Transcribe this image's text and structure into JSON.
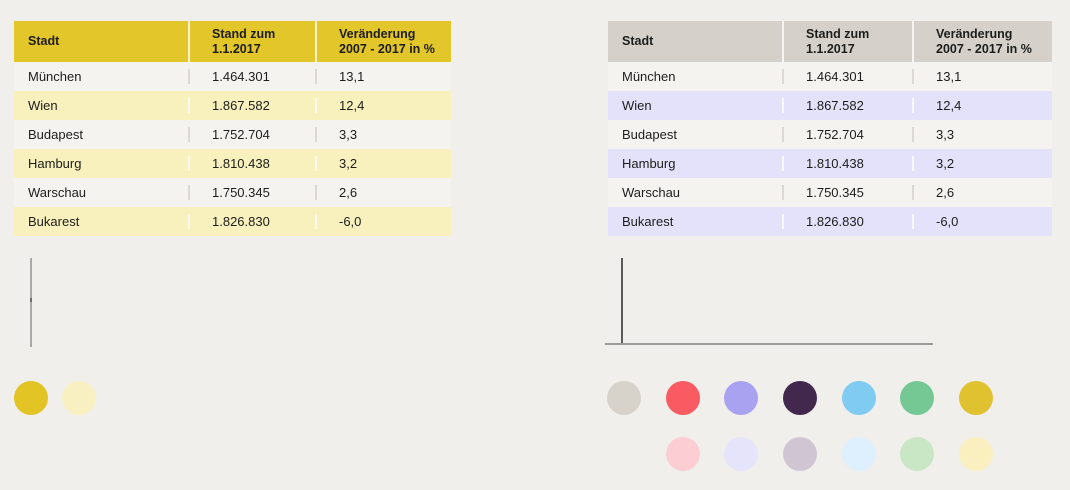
{
  "page": {
    "background": "#f0efeb"
  },
  "left_theme": {
    "header_bg": "#e2c62a",
    "alt_row_bg": "#f8f0bd",
    "row_bg": "#f4f3f0",
    "axis": {
      "y_color": "#a9a9a9",
      "tick_color": "#6e6e6e"
    },
    "table": {
      "headers": {
        "stadt": "Stadt",
        "stand_line1": "Stand zum",
        "stand_line2": "1.1.2017",
        "ver_line1": "Veränderung",
        "ver_line2": "2007 - 2017 in %"
      },
      "rows": [
        {
          "stadt": "München",
          "stand": "1.464.301",
          "ver": "13,1"
        },
        {
          "stadt": "Wien",
          "stand": "1.867.582",
          "ver": "12,4"
        },
        {
          "stadt": "Budapest",
          "stand": "1.752.704",
          "ver": "3,3"
        },
        {
          "stadt": "Hamburg",
          "stand": "1.810.438",
          "ver": "3,2"
        },
        {
          "stadt": "Warschau",
          "stand": "1.750.345",
          "ver": "2,6"
        },
        {
          "stadt": "Bukarest",
          "stand": "1.826.830",
          "ver": "-6,0"
        }
      ]
    },
    "palette": [
      {
        "name": "gold",
        "color": "#e2c424"
      },
      {
        "name": "pale-yellow",
        "color": "#f9f0c1"
      }
    ]
  },
  "right_theme": {
    "header_bg": "#d5d1ca",
    "alt_row_bg": "#e3e2fa",
    "row_bg": "#f4f3f0",
    "axis": {
      "y_color": "#5c5c5c",
      "x_color": "#9c9c9c"
    },
    "table": {
      "headers": {
        "stadt": "Stadt",
        "stand_line1": "Stand zum",
        "stand_line2": "1.1.2017",
        "ver_line1": "Veränderung",
        "ver_line2": "2007 - 2017 in %"
      },
      "rows": [
        {
          "stadt": "München",
          "stand": "1.464.301",
          "ver": "13,1"
        },
        {
          "stadt": "Wien",
          "stand": "1.867.582",
          "ver": "12,4"
        },
        {
          "stadt": "Budapest",
          "stand": "1.752.704",
          "ver": "3,3"
        },
        {
          "stadt": "Hamburg",
          "stand": "1.810.438",
          "ver": "3,2"
        },
        {
          "stadt": "Warschau",
          "stand": "1.750.345",
          "ver": "2,6"
        },
        {
          "stadt": "Bukarest",
          "stand": "1.826.830",
          "ver": "-6,0"
        }
      ]
    },
    "palette_row1": [
      {
        "name": "gray",
        "color": "#d7d3cb"
      },
      {
        "name": "coral-red",
        "color": "#fa5a61"
      },
      {
        "name": "lavender",
        "color": "#a9a2f1"
      },
      {
        "name": "dark-purple",
        "color": "#43284e"
      },
      {
        "name": "light-blue",
        "color": "#7fcbf1"
      },
      {
        "name": "green",
        "color": "#75c893"
      },
      {
        "name": "gold",
        "color": "#e0c231"
      }
    ],
    "palette_row2": [
      {
        "name": "pale-pink",
        "color": "#fccdd3"
      },
      {
        "name": "pale-lavender",
        "color": "#e6e4fb"
      },
      {
        "name": "pale-mauve",
        "color": "#d0c5d2"
      },
      {
        "name": "pale-blue",
        "color": "#def0fd"
      },
      {
        "name": "pale-green",
        "color": "#c9e7c4"
      },
      {
        "name": "pale-yellow",
        "color": "#f9efbf"
      }
    ]
  }
}
